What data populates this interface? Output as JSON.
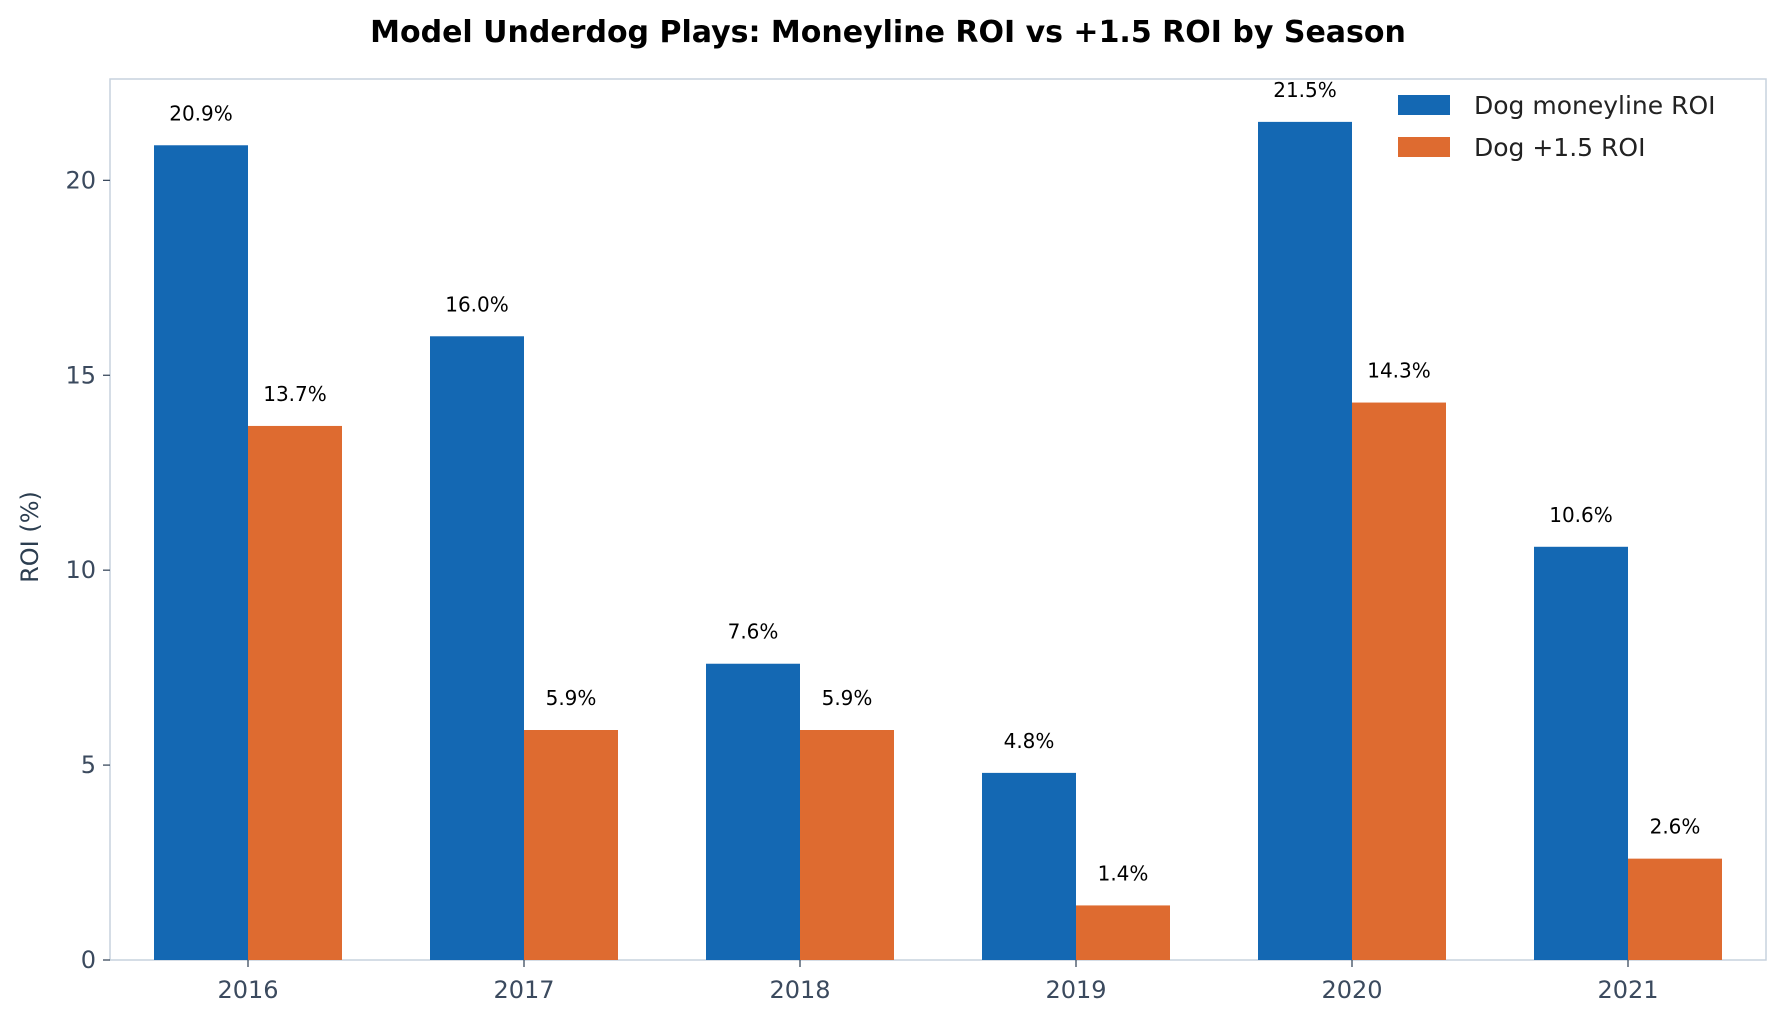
{
  "chart_data": {
    "type": "bar",
    "title": "Model Underdog Plays: Moneyline ROI vs +1.5 ROI by Season",
    "xlabel": "",
    "ylabel": "ROI (%)",
    "categories": [
      "2016",
      "2017",
      "2018",
      "2019",
      "2020",
      "2021"
    ],
    "series": [
      {
        "name": "Dog moneyline ROI",
        "color": "#1468b3",
        "values": [
          20.9,
          16.0,
          7.6,
          4.8,
          21.5,
          10.6
        ],
        "labels": [
          "20.9%",
          "16.0%",
          "7.6%",
          "4.8%",
          "21.5%",
          "10.6%"
        ]
      },
      {
        "name": "Dog +1.5 ROI",
        "color": "#de6b30",
        "values": [
          13.7,
          5.9,
          5.9,
          1.4,
          14.3,
          2.6
        ],
        "labels": [
          "13.7%",
          "5.9%",
          "5.9%",
          "1.4%",
          "14.3%",
          "2.6%"
        ]
      }
    ],
    "ylim": [
      0,
      22.6
    ],
    "yticks": [
      0,
      5,
      10,
      15,
      20
    ],
    "ytick_labels": [
      "0",
      "5",
      "10",
      "15",
      "20"
    ],
    "grid": false,
    "legend_position": "top-right",
    "spine_color": "#c7d2dd"
  }
}
